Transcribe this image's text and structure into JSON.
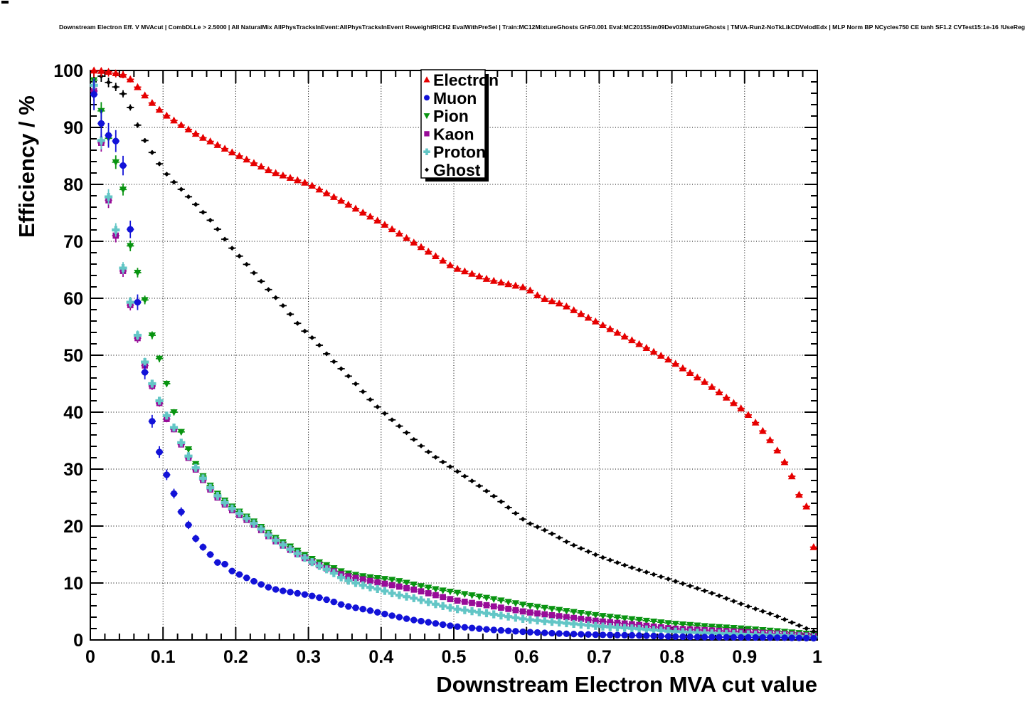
{
  "title": "Downstream Electron Eff. V MVAcut | CombDLLe > 2.5000 | All NaturalMix AllPhysTracksInEvent:AllPhysTracksInEvent ReweightRICH2 EvalWithPreSel | Train:MC12MixtureGhosts GhF0.001 Eval:MC2015Sim09Dev03MixtureGhosts | TMVA-Run2-NoTkLikCDVelodEdx | MLP Norm BP NCycles750 CE tanh SF1.2 CVTest15:1e-16 !UseReg",
  "chart_data": {
    "type": "scatter",
    "title": "Downstream Electron Eff. V MVAcut | CombDLLe > 2.5000 | All NaturalMix AllPhysTracksInEvent:AllPhysTracksInEvent ReweightRICH2 EvalWithPreSel | Train:MC12MixtureGhosts GhF0.001 Eval:MC2015Sim09Dev03MixtureGhosts | TMVA-Run2-NoTkLikCDVelodEdx | MLP Norm BP NCycles750 CE tanh SF1.2 CVTest15:1e-16 !UseReg",
    "xlabel": "Downstream Electron MVA cut value",
    "ylabel": "Efficiency / %",
    "xlim": [
      0,
      1
    ],
    "ylim": [
      0,
      100
    ],
    "x_major_ticks": [
      0,
      0.1,
      0.2,
      0.3,
      0.4,
      0.5,
      0.6,
      0.7,
      0.8,
      0.9,
      1
    ],
    "x_tick_labels": [
      "0",
      "0.1",
      "0.2",
      "0.3",
      "0.4",
      "0.5",
      "0.6",
      "0.7",
      "0.8",
      "0.9",
      "1"
    ],
    "y_major_ticks": [
      0,
      10,
      20,
      30,
      40,
      50,
      60,
      70,
      80,
      90,
      100
    ],
    "y_tick_labels": [
      "0",
      "10",
      "20",
      "30",
      "40",
      "50",
      "60",
      "70",
      "80",
      "90",
      "100"
    ],
    "minor_divisions_per_major": 5,
    "grid": "dotted-at-major-ticks",
    "legend_position": "top-center",
    "marker_x_step": 0.01,
    "first_marker_x": 0.005,
    "points_per_series": 100,
    "series": [
      {
        "name": "Electron",
        "color": "#e60000",
        "marker": "triangle-up",
        "keypoints": {
          "x": [
            0.005,
            0.02,
            0.04,
            0.05,
            0.06,
            0.08,
            0.1,
            0.12,
            0.15,
            0.18,
            0.2,
            0.25,
            0.3,
            0.35,
            0.4,
            0.45,
            0.5,
            0.55,
            0.6,
            0.62,
            0.65,
            0.7,
            0.75,
            0.8,
            0.85,
            0.9,
            0.92,
            0.94,
            0.96,
            0.97,
            0.98,
            0.99,
            0.995
          ],
          "y": [
            100,
            99.9,
            99.4,
            99.1,
            97.8,
            94.9,
            92.5,
            90.8,
            88.5,
            86.6,
            85.3,
            82.2,
            80.1,
            76.8,
            73.3,
            69.4,
            65.4,
            63.2,
            61.8,
            60.1,
            58.9,
            55.6,
            52.3,
            48.9,
            44.9,
            40.2,
            37.5,
            34.3,
            30.2,
            27.3,
            23.7,
            23.2,
            16.3
          ]
        }
      },
      {
        "name": "Muon",
        "color": "#1212d8",
        "marker": "circle",
        "keypoints": {
          "x": [
            0.005,
            0.015,
            0.025,
            0.035,
            0.045,
            0.055,
            0.065,
            0.075,
            0.085,
            0.095,
            0.105,
            0.115,
            0.125,
            0.135,
            0.145,
            0.155,
            0.165,
            0.175,
            0.185,
            0.195,
            0.21,
            0.23,
            0.25,
            0.27,
            0.29,
            0.31,
            0.33,
            0.35,
            0.38,
            0.41,
            0.44,
            0.47,
            0.5,
            0.55,
            0.6,
            0.65,
            0.7,
            0.75,
            0.8,
            0.85,
            0.9,
            0.95,
            0.995
          ],
          "y": [
            95.8,
            90.7,
            88.6,
            87.6,
            83.3,
            72.1,
            59.3,
            47.0,
            38.4,
            33.0,
            29.0,
            25.7,
            22.5,
            20.2,
            17.8,
            16.3,
            15.0,
            13.6,
            13.3,
            12.1,
            11.2,
            10.0,
            9.0,
            8.5,
            8.1,
            7.6,
            6.9,
            6.0,
            5.3,
            4.4,
            3.6,
            3.0,
            2.4,
            1.8,
            1.4,
            1.1,
            0.9,
            0.8,
            0.6,
            0.5,
            0.45,
            0.4,
            0.3
          ]
        }
      },
      {
        "name": "Pion",
        "color": "#089410",
        "marker": "triangle-down",
        "keypoints": {
          "x": [
            0.005,
            0.015,
            0.025,
            0.035,
            0.045,
            0.055,
            0.065,
            0.075,
            0.085,
            0.095,
            0.105,
            0.115,
            0.13,
            0.15,
            0.17,
            0.19,
            0.21,
            0.23,
            0.25,
            0.27,
            0.29,
            0.31,
            0.33,
            0.35,
            0.38,
            0.4,
            0.42,
            0.45,
            0.48,
            0.5,
            0.55,
            0.6,
            0.65,
            0.7,
            0.75,
            0.8,
            0.85,
            0.9,
            0.95,
            0.995
          ],
          "y": [
            98.3,
            92.9,
            88.1,
            83.9,
            79.1,
            69.2,
            64.5,
            59.7,
            53.5,
            49.4,
            45.0,
            40.0,
            34.8,
            29.6,
            26.3,
            23.9,
            22.1,
            20.4,
            18.3,
            16.8,
            15.3,
            13.9,
            12.9,
            11.8,
            11.1,
            10.8,
            10.5,
            9.6,
            8.8,
            8.4,
            7.3,
            6.1,
            5.2,
            4.3,
            3.6,
            2.9,
            2.4,
            2.0,
            1.5,
            1.0
          ]
        }
      },
      {
        "name": "Kaon",
        "color": "#980c98",
        "marker": "square",
        "keypoints": {
          "x": [
            0.005,
            0.015,
            0.025,
            0.035,
            0.045,
            0.055,
            0.065,
            0.075,
            0.085,
            0.095,
            0.105,
            0.115,
            0.13,
            0.15,
            0.17,
            0.19,
            0.21,
            0.23,
            0.25,
            0.27,
            0.29,
            0.31,
            0.33,
            0.35,
            0.38,
            0.4,
            0.42,
            0.45,
            0.48,
            0.5,
            0.55,
            0.6,
            0.65,
            0.7,
            0.75,
            0.8,
            0.85,
            0.9,
            0.95,
            0.995
          ],
          "y": [
            96.4,
            87.3,
            77.2,
            71.0,
            64.8,
            58.8,
            53.0,
            48.2,
            44.6,
            41.6,
            38.8,
            37.0,
            33.0,
            28.9,
            25.6,
            23.2,
            21.5,
            19.8,
            17.7,
            16.2,
            14.7,
            13.4,
            12.3,
            11.3,
            10.5,
            10.0,
            9.5,
            8.7,
            7.7,
            7.0,
            6.0,
            4.9,
            4.1,
            3.3,
            2.7,
            2.0,
            1.7,
            1.4,
            1.1,
            0.7
          ]
        }
      },
      {
        "name": "Proton",
        "color": "#63c6c6",
        "marker": "plus",
        "keypoints": {
          "x": [
            0.005,
            0.015,
            0.025,
            0.035,
            0.045,
            0.055,
            0.065,
            0.075,
            0.085,
            0.095,
            0.105,
            0.115,
            0.13,
            0.15,
            0.17,
            0.19,
            0.21,
            0.23,
            0.25,
            0.27,
            0.29,
            0.31,
            0.33,
            0.35,
            0.38,
            0.4,
            0.42,
            0.45,
            0.48,
            0.5,
            0.55,
            0.6,
            0.65,
            0.7,
            0.75,
            0.8,
            0.85,
            0.9,
            0.95,
            0.995
          ],
          "y": [
            97.4,
            87.7,
            77.8,
            72.0,
            65.3,
            59.3,
            53.5,
            48.8,
            45.0,
            42.0,
            39.4,
            37.3,
            33.3,
            29.2,
            25.9,
            23.5,
            21.8,
            20.0,
            17.9,
            16.3,
            14.8,
            13.3,
            12.1,
            10.6,
            9.4,
            8.8,
            8.0,
            7.2,
            6.1,
            5.5,
            4.6,
            3.6,
            3.0,
            2.4,
            2.0,
            1.5,
            1.2,
            1.0,
            0.8,
            0.5
          ]
        }
      },
      {
        "name": "Ghost",
        "color": "#000000",
        "marker": "diamond",
        "keypoints": {
          "x": [
            0.005,
            0.015,
            0.025,
            0.035,
            0.045,
            0.055,
            0.065,
            0.075,
            0.085,
            0.095,
            0.105,
            0.115,
            0.13,
            0.15,
            0.17,
            0.19,
            0.21,
            0.23,
            0.25,
            0.27,
            0.29,
            0.31,
            0.33,
            0.35,
            0.37,
            0.39,
            0.41,
            0.43,
            0.45,
            0.47,
            0.5,
            0.53,
            0.56,
            0.6,
            0.63,
            0.66,
            0.7,
            0.74,
            0.78,
            0.82,
            0.86,
            0.9,
            0.94,
            0.97,
            0.995
          ],
          "y": [
            99.8,
            99.0,
            97.9,
            97.1,
            95.9,
            93.5,
            90.4,
            87.7,
            85.6,
            83.6,
            81.8,
            80.4,
            78.5,
            75.8,
            73.0,
            69.5,
            66.7,
            63.7,
            60.8,
            58.0,
            54.8,
            52.5,
            49.5,
            47.0,
            44.3,
            41.5,
            39.2,
            37.0,
            34.6,
            32.5,
            30.0,
            27.5,
            24.8,
            20.7,
            19.0,
            16.9,
            14.7,
            12.9,
            11.3,
            9.7,
            8.0,
            6.1,
            4.4,
            2.8,
            1.5
          ]
        }
      }
    ],
    "legend": {
      "entries": [
        {
          "label": "Electron",
          "marker": "triangle-up",
          "color": "#e60000"
        },
        {
          "label": "Muon",
          "marker": "circle",
          "color": "#1212d8"
        },
        {
          "label": "Pion",
          "marker": "triangle-down",
          "color": "#089410"
        },
        {
          "label": "Kaon",
          "marker": "square",
          "color": "#980c98"
        },
        {
          "label": "Proton",
          "marker": "plus",
          "color": "#63c6c6"
        },
        {
          "label": "Ghost",
          "marker": "diamond",
          "color": "#000000"
        }
      ]
    }
  }
}
